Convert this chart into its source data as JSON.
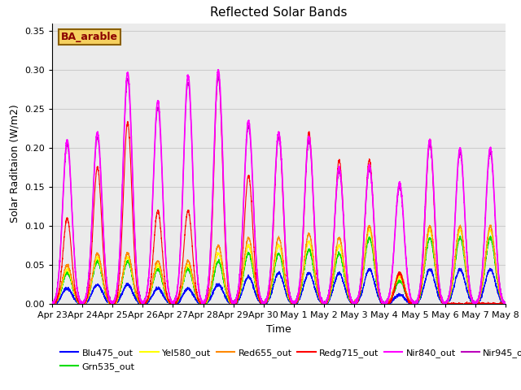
{
  "title": "Reflected Solar Bands",
  "xlabel": "Time",
  "ylabel": "Solar Raditaion (W/m2)",
  "annotation": "BA_arable",
  "annotation_color": "#8B0000",
  "annotation_bg": "#F5D060",
  "ylim": [
    0.0,
    0.36
  ],
  "yticks": [
    0.0,
    0.05,
    0.1,
    0.15,
    0.2,
    0.25,
    0.3,
    0.35
  ],
  "xtick_labels": [
    "Apr 23",
    "Apr 24",
    "Apr 25",
    "Apr 26",
    "Apr 27",
    "Apr 28",
    "Apr 29",
    "Apr 30",
    "May 1",
    "May 2",
    "May 3",
    "May 4",
    "May 5",
    "May 6",
    "May 7",
    "May 8"
  ],
  "bands": {
    "Blu475_out": {
      "color": "#0000FF",
      "lw": 0.8
    },
    "Grn535_out": {
      "color": "#00DD00",
      "lw": 0.8
    },
    "Yel580_out": {
      "color": "#FFFF00",
      "lw": 0.8
    },
    "Red655_out": {
      "color": "#FF8800",
      "lw": 0.8
    },
    "Redg715_out": {
      "color": "#FF0000",
      "lw": 0.8
    },
    "Nir840_out": {
      "color": "#FF00FF",
      "lw": 1.2
    },
    "Nir945_out": {
      "color": "#BB00BB",
      "lw": 0.8
    }
  },
  "grid_color": "#CCCCCC",
  "bg_color": "#EBEBEB",
  "day_peaks": {
    "nir840": [
      0.21,
      0.22,
      0.297,
      0.26,
      0.293,
      0.3,
      0.235,
      0.22,
      0.215,
      0.175,
      0.178,
      0.155,
      0.21,
      0.2,
      0.2
    ],
    "redg": [
      0.11,
      0.175,
      0.233,
      0.12,
      0.12,
      0.295,
      0.165,
      0.22,
      0.22,
      0.185,
      0.185,
      0.04,
      0.21,
      0.0,
      0.0
    ],
    "red": [
      0.05,
      0.065,
      0.065,
      0.055,
      0.055,
      0.075,
      0.085,
      0.085,
      0.09,
      0.085,
      0.1,
      0.04,
      0.1,
      0.1,
      0.1
    ],
    "yel": [
      0.045,
      0.06,
      0.06,
      0.05,
      0.05,
      0.065,
      0.075,
      0.075,
      0.08,
      0.075,
      0.095,
      0.035,
      0.095,
      0.095,
      0.095
    ],
    "grn": [
      0.04,
      0.055,
      0.055,
      0.045,
      0.045,
      0.055,
      0.065,
      0.065,
      0.07,
      0.065,
      0.085,
      0.03,
      0.085,
      0.085,
      0.085
    ],
    "blu": [
      0.02,
      0.025,
      0.025,
      0.02,
      0.02,
      0.025,
      0.035,
      0.04,
      0.04,
      0.04,
      0.045,
      0.012,
      0.045,
      0.045,
      0.045
    ]
  }
}
